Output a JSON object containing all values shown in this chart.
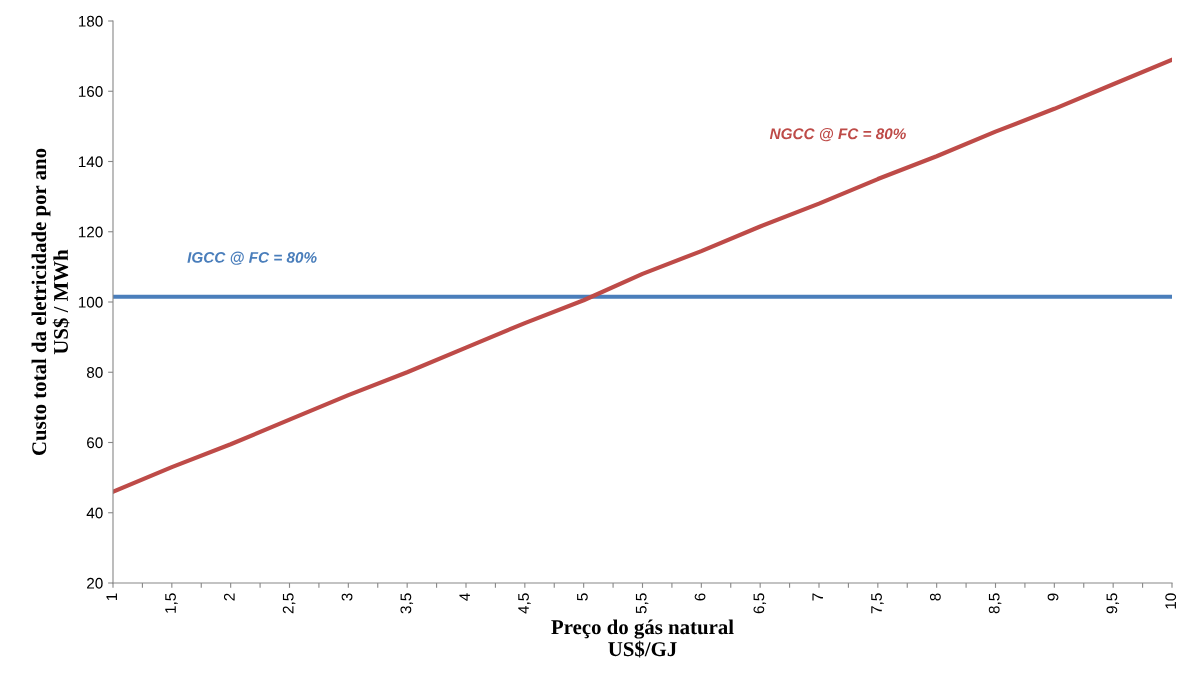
{
  "chart_data": {
    "type": "line",
    "xlabel": "Preço do gás natural\nUS$/GJ",
    "ylabel": "Custo total da eletricidade por ano\nUS$ / MWh",
    "xlim": [
      1,
      10
    ],
    "ylim": [
      20,
      180
    ],
    "xticks": [
      1,
      {
        "value": 1.25,
        "label": null
      },
      {
        "value": 1.5,
        "label": "1,5"
      },
      {
        "value": 1.75,
        "label": null
      },
      2,
      {
        "value": 2.25,
        "label": null
      },
      {
        "value": 2.5,
        "label": "2,5"
      },
      {
        "value": 2.75,
        "label": null
      },
      3,
      {
        "value": 3.25,
        "label": null
      },
      {
        "value": 3.5,
        "label": "3,5"
      },
      {
        "value": 3.75,
        "label": null
      },
      4,
      {
        "value": 4.25,
        "label": null
      },
      {
        "value": 4.5,
        "label": "4,5"
      },
      {
        "value": 4.75,
        "label": null
      },
      5,
      {
        "value": 5.25,
        "label": null
      },
      {
        "value": 5.5,
        "label": "5,5"
      },
      {
        "value": 5.75,
        "label": null
      },
      6,
      {
        "value": 6.25,
        "label": null
      },
      {
        "value": 6.5,
        "label": "6,5"
      },
      {
        "value": 6.75,
        "label": null
      },
      7,
      {
        "value": 7.25,
        "label": null
      },
      {
        "value": 7.5,
        "label": "7,5"
      },
      {
        "value": 7.75,
        "label": null
      },
      8,
      {
        "value": 8.25,
        "label": null
      },
      {
        "value": 8.5,
        "label": "8,5"
      },
      {
        "value": 8.75,
        "label": null
      },
      9,
      {
        "value": 9.25,
        "label": null
      },
      {
        "value": 9.5,
        "label": "9,5"
      },
      {
        "value": 9.75,
        "label": null
      },
      10
    ],
    "yticks": [
      20,
      40,
      60,
      80,
      100,
      120,
      140,
      160,
      180
    ],
    "grid": false,
    "legend": false,
    "marker": "none",
    "line_style": "solid",
    "series": [
      {
        "name": "IGCC @ FC = 80%",
        "color": "#4a7ebb",
        "x": [
          1,
          10
        ],
        "values": [
          101.5,
          101.5
        ]
      },
      {
        "name": "NGCC @ FC = 80%",
        "color": "#be4b48",
        "x": [
          1,
          1.5,
          2,
          2.5,
          3,
          3.5,
          4,
          4.5,
          5,
          5.5,
          6,
          6.5,
          7,
          7.5,
          8,
          8.5,
          9,
          9.5,
          10
        ],
        "values": [
          46,
          53,
          59.5,
          66.5,
          73.5,
          80,
          87,
          94,
          100.5,
          108,
          114.5,
          121.5,
          128,
          135,
          141.5,
          148.5,
          155,
          162,
          169
        ]
      }
    ]
  }
}
